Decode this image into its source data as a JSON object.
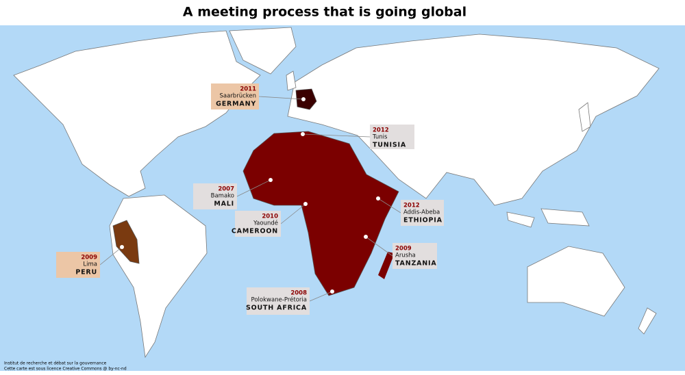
{
  "title": "A meeting process that is going global",
  "locations": [
    {
      "year": "2011",
      "city": "Saarbrücken",
      "country": "GERMANY"
    },
    {
      "year": "2012",
      "city": "Tunis",
      "country": "TUNISIA"
    },
    {
      "year": "2007",
      "city": "Bamako",
      "country": "MALI"
    },
    {
      "year": "2010",
      "city": "Yaoundé",
      "country": "CAMEROON"
    },
    {
      "year": "2012",
      "city": "Addis-Abeba",
      "country": "ETHIOPIA"
    },
    {
      "year": "2009",
      "city": "Arusha",
      "country": "TANZANIA"
    },
    {
      "year": "2009",
      "city": "Lima",
      "country": "PERU"
    },
    {
      "year": "2008",
      "city": "Polokwane-Prétoria",
      "country": "SOUTH AFRICA"
    }
  ],
  "credits": [
    "Institut de recherche et débat sur la gouvernance",
    "Cette carte est sous licence Creative Commons @ by-nc-nd"
  ]
}
